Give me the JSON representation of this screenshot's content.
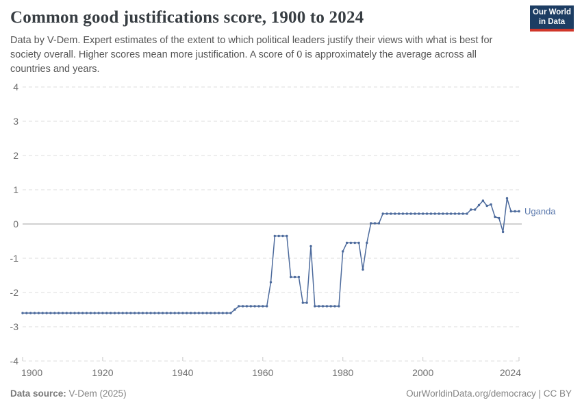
{
  "header": {
    "title": "Common good justifications score, 1900 to 2024",
    "subtitle_lines": [
      "Data by V-Dem. Expert estimates of the extent to which political leaders justify their views with what is best for",
      "society overall. Higher scores mean more justification. A score of 0 is approximately the average across all",
      "countries and years."
    ]
  },
  "logo": {
    "line1": "Our World",
    "line2": "in Data"
  },
  "chart_data": {
    "type": "line",
    "title": "Common good justifications score, 1900 to 2024",
    "xlabel": "",
    "ylabel": "",
    "xlim": [
      1900,
      2024
    ],
    "ylim": [
      -4,
      4
    ],
    "xticks": [
      1900,
      1920,
      1940,
      1960,
      1980,
      2000,
      2024
    ],
    "yticks": [
      -4,
      -3,
      -2,
      -1,
      0,
      1,
      2,
      3,
      4
    ],
    "grid": "horizontal-dashed",
    "legend_position": "end-of-line-label",
    "series": [
      {
        "name": "Uganda",
        "points": [
          [
            1900,
            -2.6
          ],
          [
            1901,
            -2.6
          ],
          [
            1902,
            -2.6
          ],
          [
            1903,
            -2.6
          ],
          [
            1904,
            -2.6
          ],
          [
            1905,
            -2.6
          ],
          [
            1906,
            -2.6
          ],
          [
            1907,
            -2.6
          ],
          [
            1908,
            -2.6
          ],
          [
            1909,
            -2.6
          ],
          [
            1910,
            -2.6
          ],
          [
            1911,
            -2.6
          ],
          [
            1912,
            -2.6
          ],
          [
            1913,
            -2.6
          ],
          [
            1914,
            -2.6
          ],
          [
            1915,
            -2.6
          ],
          [
            1916,
            -2.6
          ],
          [
            1917,
            -2.6
          ],
          [
            1918,
            -2.6
          ],
          [
            1919,
            -2.6
          ],
          [
            1920,
            -2.6
          ],
          [
            1921,
            -2.6
          ],
          [
            1922,
            -2.6
          ],
          [
            1923,
            -2.6
          ],
          [
            1924,
            -2.6
          ],
          [
            1925,
            -2.6
          ],
          [
            1926,
            -2.6
          ],
          [
            1927,
            -2.6
          ],
          [
            1928,
            -2.6
          ],
          [
            1929,
            -2.6
          ],
          [
            1930,
            -2.6
          ],
          [
            1931,
            -2.6
          ],
          [
            1932,
            -2.6
          ],
          [
            1933,
            -2.6
          ],
          [
            1934,
            -2.6
          ],
          [
            1935,
            -2.6
          ],
          [
            1936,
            -2.6
          ],
          [
            1937,
            -2.6
          ],
          [
            1938,
            -2.6
          ],
          [
            1939,
            -2.6
          ],
          [
            1940,
            -2.6
          ],
          [
            1941,
            -2.6
          ],
          [
            1942,
            -2.6
          ],
          [
            1943,
            -2.6
          ],
          [
            1944,
            -2.6
          ],
          [
            1945,
            -2.6
          ],
          [
            1946,
            -2.6
          ],
          [
            1947,
            -2.6
          ],
          [
            1948,
            -2.6
          ],
          [
            1949,
            -2.6
          ],
          [
            1950,
            -2.6
          ],
          [
            1951,
            -2.6
          ],
          [
            1952,
            -2.6
          ],
          [
            1953,
            -2.5
          ],
          [
            1954,
            -2.4
          ],
          [
            1955,
            -2.4
          ],
          [
            1956,
            -2.4
          ],
          [
            1957,
            -2.4
          ],
          [
            1958,
            -2.4
          ],
          [
            1959,
            -2.4
          ],
          [
            1960,
            -2.4
          ],
          [
            1961,
            -2.4
          ],
          [
            1962,
            -1.7
          ],
          [
            1963,
            -0.35
          ],
          [
            1964,
            -0.35
          ],
          [
            1965,
            -0.35
          ],
          [
            1966,
            -0.35
          ],
          [
            1967,
            -1.55
          ],
          [
            1968,
            -1.55
          ],
          [
            1969,
            -1.55
          ],
          [
            1970,
            -2.3
          ],
          [
            1971,
            -2.3
          ],
          [
            1972,
            -0.65
          ],
          [
            1973,
            -2.4
          ],
          [
            1974,
            -2.4
          ],
          [
            1975,
            -2.4
          ],
          [
            1976,
            -2.4
          ],
          [
            1977,
            -2.4
          ],
          [
            1978,
            -2.4
          ],
          [
            1979,
            -2.4
          ],
          [
            1980,
            -0.8
          ],
          [
            1981,
            -0.55
          ],
          [
            1982,
            -0.55
          ],
          [
            1983,
            -0.55
          ],
          [
            1984,
            -0.55
          ],
          [
            1985,
            -1.33
          ],
          [
            1986,
            -0.55
          ],
          [
            1987,
            0.02
          ],
          [
            1988,
            0.02
          ],
          [
            1989,
            0.02
          ],
          [
            1990,
            0.3
          ],
          [
            1991,
            0.3
          ],
          [
            1992,
            0.3
          ],
          [
            1993,
            0.3
          ],
          [
            1994,
            0.3
          ],
          [
            1995,
            0.3
          ],
          [
            1996,
            0.3
          ],
          [
            1997,
            0.3
          ],
          [
            1998,
            0.3
          ],
          [
            1999,
            0.3
          ],
          [
            2000,
            0.3
          ],
          [
            2001,
            0.3
          ],
          [
            2002,
            0.3
          ],
          [
            2003,
            0.3
          ],
          [
            2004,
            0.3
          ],
          [
            2005,
            0.3
          ],
          [
            2006,
            0.3
          ],
          [
            2007,
            0.3
          ],
          [
            2008,
            0.3
          ],
          [
            2009,
            0.3
          ],
          [
            2010,
            0.3
          ],
          [
            2011,
            0.3
          ],
          [
            2012,
            0.42
          ],
          [
            2013,
            0.42
          ],
          [
            2014,
            0.55
          ],
          [
            2015,
            0.68
          ],
          [
            2016,
            0.53
          ],
          [
            2017,
            0.57
          ],
          [
            2018,
            0.21
          ],
          [
            2019,
            0.17
          ],
          [
            2020,
            -0.23
          ],
          [
            2021,
            0.75
          ],
          [
            2022,
            0.37
          ],
          [
            2023,
            0.37
          ],
          [
            2024,
            0.37
          ]
        ]
      }
    ],
    "entity_label": "Uganda"
  },
  "footer": {
    "source_label": "Data source:",
    "source_value": " V-Dem (2025)",
    "right_text": "OurWorldinData.org/democracy | CC BY"
  },
  "colors": {
    "line": "#4c6a9c",
    "entity_label": "#5b79ad",
    "zero_line": "#a3a3a3",
    "grid": "#dcdcdc",
    "tick_label": "#6e6e6e",
    "axis_tick": "#c8c8c8",
    "logo_bg": "#1d3d63",
    "logo_bar": "#d0362a"
  }
}
